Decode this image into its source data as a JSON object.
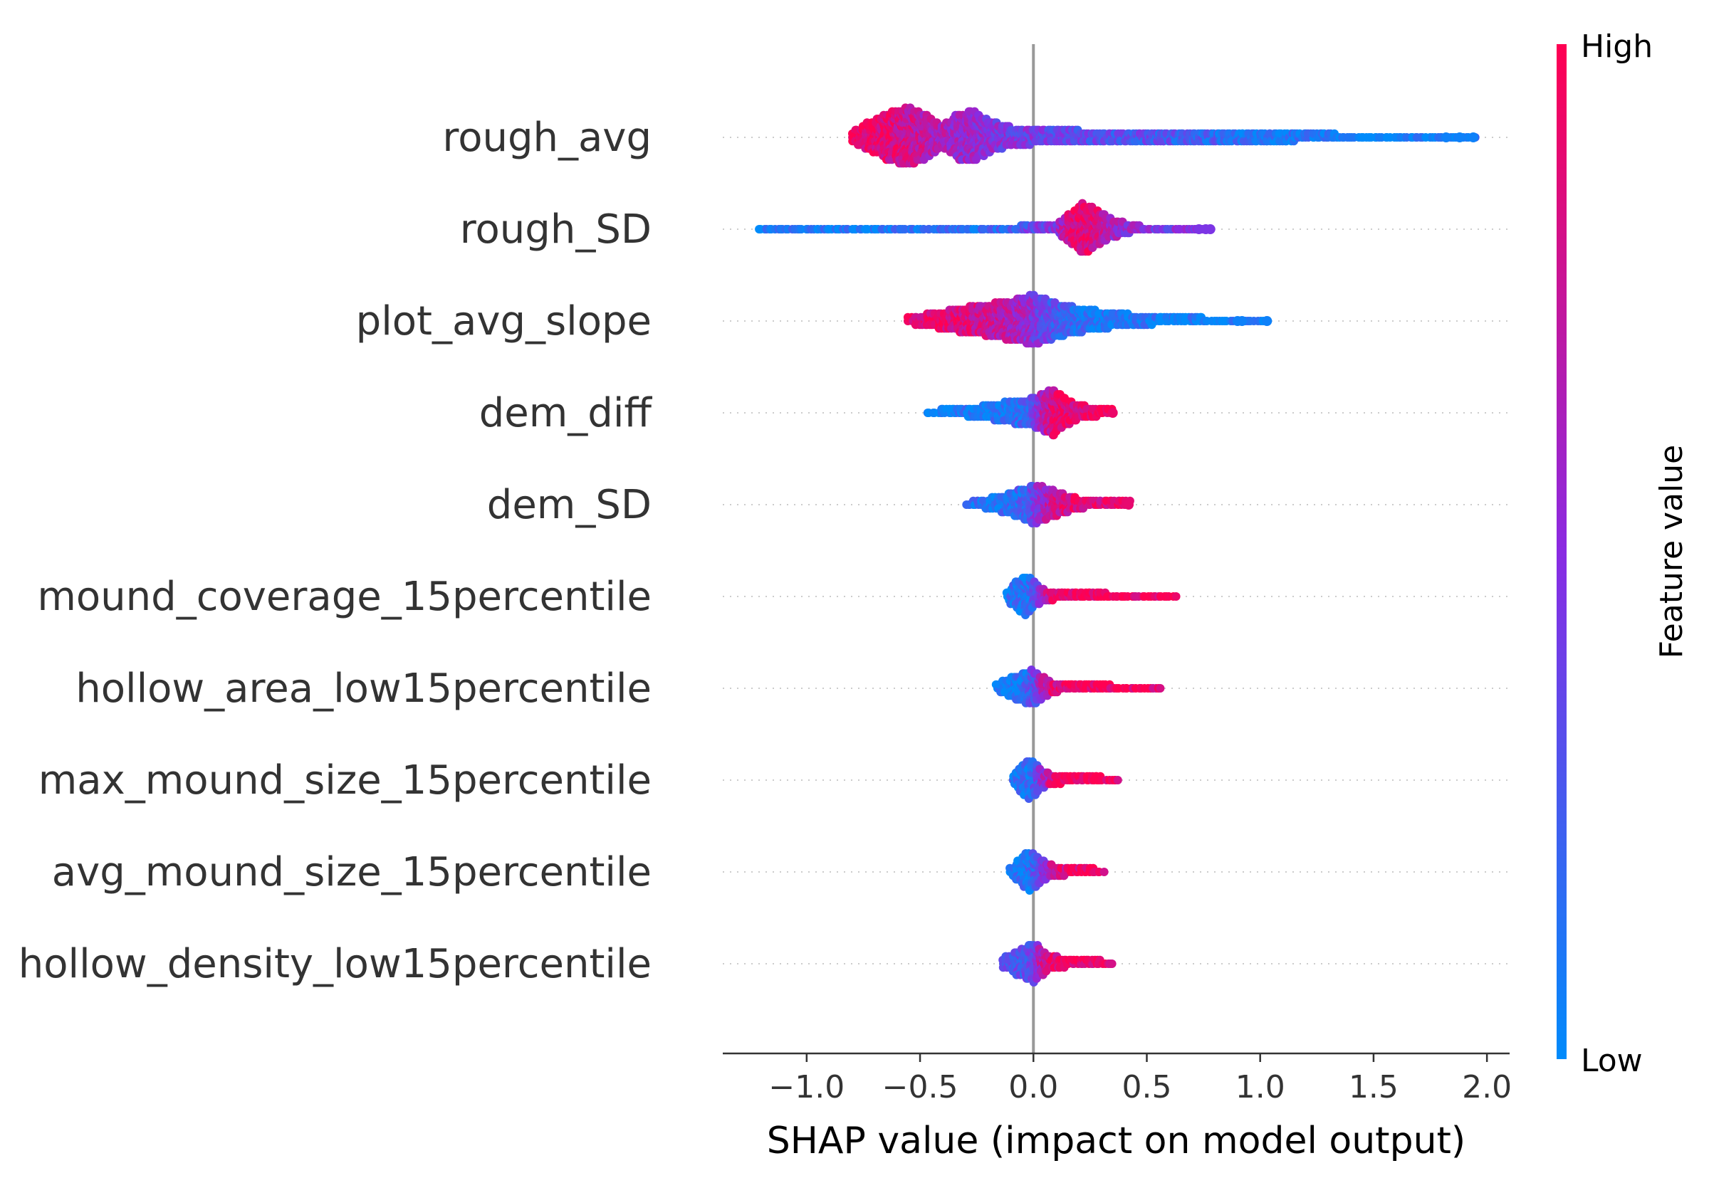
{
  "chart_data": {
    "type": "scatter",
    "subtype": "shap-beeswarm",
    "title": "",
    "xlabel": "SHAP value (impact on model output)",
    "ylabel": "",
    "xlim": [
      -1.37,
      2.1
    ],
    "xticks": [
      -1.0,
      -0.5,
      0.0,
      0.5,
      1.0,
      1.5,
      2.0
    ],
    "xtick_labels": [
      "−1.0",
      "−0.5",
      "0.0",
      "0.5",
      "1.0",
      "1.5",
      "2.0"
    ],
    "grid": false,
    "colorbar": {
      "title": "Feature value",
      "high_label": "High",
      "low_label": "Low",
      "high_color": "#ff0052",
      "mid_color": "#8a2be2",
      "low_color": "#008bfb"
    },
    "features": [
      {
        "name": "rough_avg",
        "min": -0.8,
        "max": 1.95,
        "outliers": [
          1.82,
          1.88,
          1.94
        ],
        "dist": [
          [
            -0.8,
            3,
            0.95
          ],
          [
            -0.72,
            8,
            0.92
          ],
          [
            -0.62,
            14,
            0.85
          ],
          [
            -0.55,
            16,
            0.8
          ],
          [
            -0.47,
            12,
            0.72
          ],
          [
            -0.4,
            6,
            0.65
          ],
          [
            -0.33,
            13,
            0.6
          ],
          [
            -0.26,
            14,
            0.55
          ],
          [
            -0.18,
            8,
            0.5
          ],
          [
            -0.08,
            5,
            0.45
          ],
          [
            0.05,
            4,
            0.4
          ],
          [
            0.2,
            3.5,
            0.35
          ],
          [
            0.35,
            3,
            0.32
          ],
          [
            0.5,
            2.8,
            0.3
          ],
          [
            0.65,
            2.6,
            0.25
          ],
          [
            0.8,
            2.6,
            0.2
          ],
          [
            0.9,
            3.2,
            0.12
          ],
          [
            1.0,
            3.5,
            0.1
          ],
          [
            1.1,
            2.8,
            0.1
          ],
          [
            1.3,
            1.6,
            0.08
          ],
          [
            1.5,
            1,
            0.06
          ],
          [
            1.7,
            0.6,
            0.05
          ]
        ]
      },
      {
        "name": "rough_SD",
        "min": -1.21,
        "max": 0.78,
        "outliers": [
          0.73,
          0.76,
          0.78
        ],
        "dist": [
          [
            -1.21,
            0.5,
            0.05
          ],
          [
            -1.0,
            1,
            0.05
          ],
          [
            -0.85,
            1.4,
            0.05
          ],
          [
            -0.65,
            1.2,
            0.08
          ],
          [
            -0.4,
            1.2,
            0.12
          ],
          [
            -0.2,
            1.3,
            0.2
          ],
          [
            0.0,
            1.6,
            0.35
          ],
          [
            0.1,
            2.5,
            0.5
          ],
          [
            0.18,
            10,
            0.85
          ],
          [
            0.22,
            14,
            0.88
          ],
          [
            0.28,
            10,
            0.82
          ],
          [
            0.35,
            5,
            0.6
          ],
          [
            0.45,
            2,
            0.5
          ],
          [
            0.5,
            1,
            0.45
          ]
        ]
      },
      {
        "name": "plot_avg_slope",
        "min": -0.55,
        "max": 1.03,
        "outliers": [
          0.9,
          0.92,
          1.03
        ],
        "dist": [
          [
            -0.55,
            2,
            0.95
          ],
          [
            -0.45,
            4,
            0.92
          ],
          [
            -0.35,
            6,
            0.88
          ],
          [
            -0.25,
            8,
            0.8
          ],
          [
            -0.15,
            10,
            0.72
          ],
          [
            -0.05,
            12,
            0.62
          ],
          [
            0.0,
            14,
            0.5
          ],
          [
            0.05,
            12,
            0.35
          ],
          [
            0.12,
            9,
            0.25
          ],
          [
            0.2,
            7,
            0.15
          ],
          [
            0.3,
            5,
            0.1
          ],
          [
            0.45,
            3,
            0.08
          ],
          [
            0.6,
            2,
            0.05
          ],
          [
            0.75,
            1.5,
            0.05
          ],
          [
            0.85,
            1,
            0.05
          ]
        ]
      },
      {
        "name": "dem_diff",
        "min": -0.47,
        "max": 0.35,
        "outliers": [
          0.35
        ],
        "dist": [
          [
            -0.47,
            1,
            0.05
          ],
          [
            -0.35,
            2,
            0.06
          ],
          [
            -0.25,
            3,
            0.08
          ],
          [
            -0.15,
            5,
            0.1
          ],
          [
            -0.05,
            7,
            0.15
          ],
          [
            0.0,
            8,
            0.3
          ],
          [
            0.05,
            11,
            0.7
          ],
          [
            0.09,
            13,
            0.85
          ],
          [
            0.13,
            9,
            0.88
          ],
          [
            0.18,
            5,
            0.9
          ],
          [
            0.25,
            3,
            0.92
          ],
          [
            0.3,
            2,
            0.92
          ]
        ]
      },
      {
        "name": "dem_SD",
        "min": -0.3,
        "max": 0.42,
        "outliers": [
          0.42
        ],
        "dist": [
          [
            -0.3,
            1,
            0.1
          ],
          [
            -0.2,
            3,
            0.1
          ],
          [
            -0.1,
            6,
            0.15
          ],
          [
            -0.03,
            9,
            0.2
          ],
          [
            0.0,
            11,
            0.35
          ],
          [
            0.05,
            9,
            0.6
          ],
          [
            0.1,
            7,
            0.8
          ],
          [
            0.15,
            5,
            0.85
          ],
          [
            0.2,
            3,
            0.88
          ],
          [
            0.25,
            2,
            0.9
          ]
        ]
      },
      {
        "name": "mound_coverage_15percentile",
        "min": -0.12,
        "max": 0.63,
        "outliers": [],
        "dist": [
          [
            -0.12,
            2,
            0.1
          ],
          [
            -0.07,
            8,
            0.1
          ],
          [
            -0.04,
            11,
            0.12
          ],
          [
            -0.01,
            10,
            0.15
          ],
          [
            0.02,
            5,
            0.4
          ],
          [
            0.06,
            3,
            0.7
          ],
          [
            0.1,
            2.2,
            0.95
          ],
          [
            0.2,
            1.8,
            0.95
          ],
          [
            0.35,
            1.4,
            0.95
          ],
          [
            0.5,
            1,
            0.95
          ],
          [
            0.6,
            0.8,
            0.95
          ]
        ]
      },
      {
        "name": "hollow_area_low15percentile",
        "min": -0.16,
        "max": 0.57,
        "outliers": [],
        "dist": [
          [
            -0.16,
            2,
            0.05
          ],
          [
            -0.1,
            6,
            0.05
          ],
          [
            -0.05,
            8,
            0.1
          ],
          [
            0.0,
            10,
            0.3
          ],
          [
            0.04,
            6,
            0.6
          ],
          [
            0.08,
            3,
            0.85
          ],
          [
            0.15,
            2,
            0.95
          ],
          [
            0.3,
            1.6,
            0.95
          ],
          [
            0.45,
            1.2,
            0.95
          ],
          [
            0.55,
            0.8,
            0.95
          ]
        ]
      },
      {
        "name": "max_mound_size_15percentile",
        "min": -0.09,
        "max": 0.38,
        "outliers": [],
        "dist": [
          [
            -0.09,
            2,
            0.08
          ],
          [
            -0.05,
            8,
            0.1
          ],
          [
            -0.02,
            11,
            0.12
          ],
          [
            0.0,
            10,
            0.2
          ],
          [
            0.04,
            5,
            0.5
          ],
          [
            0.08,
            3,
            0.8
          ],
          [
            0.15,
            2.2,
            0.95
          ],
          [
            0.25,
            1.8,
            0.95
          ],
          [
            0.35,
            1.2,
            0.95
          ]
        ]
      },
      {
        "name": "avg_mound_size_15percentile",
        "min": -0.1,
        "max": 0.31,
        "outliers": [],
        "dist": [
          [
            -0.1,
            2,
            0.08
          ],
          [
            -0.05,
            8,
            0.1
          ],
          [
            -0.02,
            11,
            0.12
          ],
          [
            0.01,
            9,
            0.25
          ],
          [
            0.05,
            5,
            0.55
          ],
          [
            0.1,
            3,
            0.8
          ],
          [
            0.18,
            2.2,
            0.9
          ],
          [
            0.28,
            1.4,
            0.95
          ]
        ]
      },
      {
        "name": "hollow_density_low15percentile",
        "min": -0.13,
        "max": 0.36,
        "outliers": [],
        "dist": [
          [
            -0.13,
            3,
            0.35
          ],
          [
            -0.08,
            6,
            0.3
          ],
          [
            -0.03,
            9,
            0.3
          ],
          [
            0.0,
            11,
            0.4
          ],
          [
            0.04,
            7,
            0.7
          ],
          [
            0.08,
            4,
            0.88
          ],
          [
            0.15,
            2.4,
            0.95
          ],
          [
            0.25,
            1.8,
            0.95
          ],
          [
            0.34,
            1.2,
            0.95
          ]
        ]
      }
    ]
  }
}
